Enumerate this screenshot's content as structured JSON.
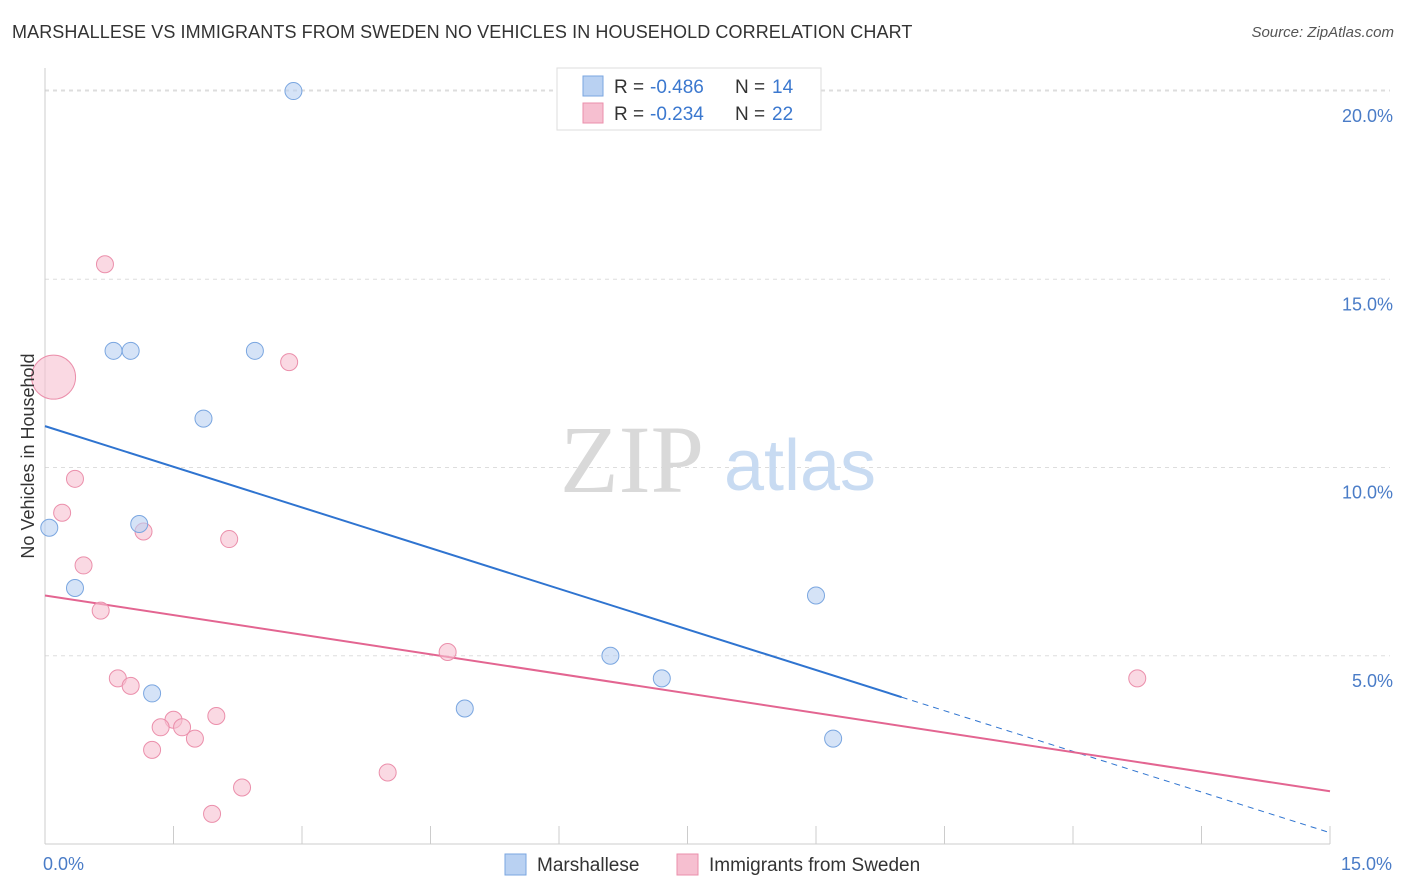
{
  "title": "MARSHALLESE VS IMMIGRANTS FROM SWEDEN NO VEHICLES IN HOUSEHOLD CORRELATION CHART",
  "source": "Source: ZipAtlas.com",
  "watermark": {
    "zip": "ZIP",
    "atlas": "atlas"
  },
  "colors": {
    "blue_fill": "#b9d1f2",
    "blue_stroke": "#7aa6e0",
    "blue_line": "#2f74d0",
    "pink_fill": "#f6bfd0",
    "pink_stroke": "#eb8fab",
    "pink_line": "#e36591",
    "tick_blue": "#4a7cc7",
    "grid": "#dddddd"
  },
  "legend": {
    "entries": [
      {
        "r_label": "R =",
        "r_value": "-0.486",
        "n_label": "N =",
        "n_value": "14"
      },
      {
        "r_label": "R =",
        "r_value": "-0.234",
        "n_label": "N =",
        "n_value": "22"
      }
    ]
  },
  "chart_data": {
    "type": "scatter",
    "title": "MARSHALLESE VS IMMIGRANTS FROM SWEDEN NO VEHICLES IN HOUSEHOLD CORRELATION CHART",
    "xlabel": "",
    "ylabel": "No Vehicles in Household",
    "xlim": [
      0,
      15
    ],
    "ylim": [
      0,
      20.4
    ],
    "x_tick_labels": [
      {
        "value": 0,
        "label": "0.0%"
      },
      {
        "value": 15,
        "label": "15.0%"
      }
    ],
    "y_tick_labels": [
      {
        "value": 5,
        "label": "5.0%"
      },
      {
        "value": 10,
        "label": "10.0%"
      },
      {
        "value": 15,
        "label": "15.0%"
      },
      {
        "value": 20,
        "label": "20.0%"
      }
    ],
    "grid": true,
    "legend_position": "top-center",
    "series": [
      {
        "name": "Marshallese",
        "color": "#b9d1f2",
        "points": [
          {
            "x": 2.9,
            "y": 20.0
          },
          {
            "x": 1.0,
            "y": 13.1
          },
          {
            "x": 0.8,
            "y": 13.1
          },
          {
            "x": 2.45,
            "y": 13.1
          },
          {
            "x": 1.85,
            "y": 11.3
          },
          {
            "x": 0.05,
            "y": 8.4
          },
          {
            "x": 1.1,
            "y": 8.5
          },
          {
            "x": 0.35,
            "y": 6.8
          },
          {
            "x": 9.0,
            "y": 6.6
          },
          {
            "x": 6.6,
            "y": 5.0
          },
          {
            "x": 7.2,
            "y": 4.4
          },
          {
            "x": 1.25,
            "y": 4.0
          },
          {
            "x": 4.9,
            "y": 3.6
          },
          {
            "x": 9.2,
            "y": 2.8
          }
        ],
        "trend": {
          "x_start": 0,
          "y_start": 11.1,
          "x_end": 10.0,
          "y_end": 3.9,
          "dash_x_end": 15.0,
          "dash_y_end": 0.3
        }
      },
      {
        "name": "Immigrants from Sweden",
        "color": "#f6bfd0",
        "points": [
          {
            "x": 0.1,
            "y": 12.4,
            "large": true
          },
          {
            "x": 0.7,
            "y": 15.4
          },
          {
            "x": 2.85,
            "y": 12.8
          },
          {
            "x": 0.35,
            "y": 9.7
          },
          {
            "x": 0.2,
            "y": 8.8
          },
          {
            "x": 1.15,
            "y": 8.3
          },
          {
            "x": 2.15,
            "y": 8.1
          },
          {
            "x": 0.45,
            "y": 7.4
          },
          {
            "x": 0.65,
            "y": 6.2
          },
          {
            "x": 4.7,
            "y": 5.1
          },
          {
            "x": 12.75,
            "y": 4.4
          },
          {
            "x": 0.85,
            "y": 4.4
          },
          {
            "x": 1.0,
            "y": 4.2
          },
          {
            "x": 2.0,
            "y": 3.4
          },
          {
            "x": 1.5,
            "y": 3.3
          },
          {
            "x": 1.35,
            "y": 3.1
          },
          {
            "x": 1.6,
            "y": 3.1
          },
          {
            "x": 1.75,
            "y": 2.8
          },
          {
            "x": 1.25,
            "y": 2.5
          },
          {
            "x": 4.0,
            "y": 1.9
          },
          {
            "x": 2.3,
            "y": 1.5
          },
          {
            "x": 1.95,
            "y": 0.8
          }
        ],
        "trend": {
          "x_start": 0,
          "y_start": 6.6,
          "x_end": 15.0,
          "y_end": 1.4
        }
      }
    ]
  }
}
